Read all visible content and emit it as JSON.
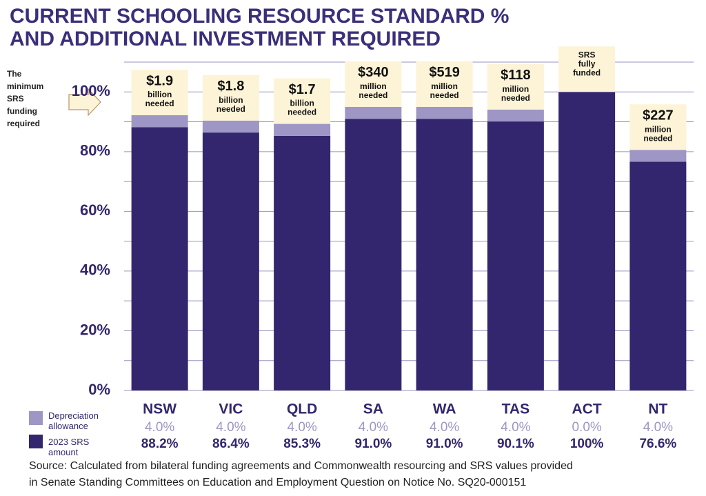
{
  "chart_data": {
    "type": "stacked_bar",
    "title": [
      "CURRENT SCHOOLING RESOURCE STANDARD %",
      "AND ADDITIONAL INVESTMENT REQUIRED"
    ],
    "categories": [
      "NSW",
      "VIC",
      "QLD",
      "SA",
      "WA",
      "TAS",
      "ACT",
      "NT"
    ],
    "series": [
      {
        "name": "2023 SRS amount",
        "color": "#33266e",
        "values": [
          88.2,
          86.4,
          85.3,
          91.0,
          91.0,
          90.1,
          100,
          76.6
        ],
        "value_labels": [
          "88.2%",
          "86.4%",
          "85.3%",
          "91.0%",
          "91.0%",
          "90.1%",
          "100%",
          "76.6%"
        ]
      },
      {
        "name": "Depreciation allowance",
        "color": "#9e96c4",
        "values": [
          4.0,
          4.0,
          4.0,
          4.0,
          4.0,
          4.0,
          0.0,
          4.0
        ],
        "value_labels": [
          "4.0%",
          "4.0%",
          "4.0%",
          "4.0%",
          "4.0%",
          "4.0%",
          "0.0%",
          "4.0%"
        ]
      }
    ],
    "annotations": [
      {
        "amount": "$1.9",
        "lines": [
          "billion",
          "needed"
        ]
      },
      {
        "amount": "$1.8",
        "lines": [
          "billion",
          "needed"
        ]
      },
      {
        "amount": "$1.7",
        "lines": [
          "billion",
          "needed"
        ]
      },
      {
        "amount": "$340",
        "lines": [
          "million",
          "needed"
        ]
      },
      {
        "amount": "$519",
        "lines": [
          "million",
          "needed"
        ]
      },
      {
        "amount": "$118",
        "lines": [
          "million",
          "needed"
        ]
      },
      {
        "lines": [
          "SRS",
          "fully",
          "funded"
        ]
      },
      {
        "amount": "$227",
        "lines": [
          "million",
          "needed"
        ]
      }
    ],
    "side_note": [
      "The",
      "minimum",
      "SRS",
      "funding",
      "required"
    ],
    "ylim": [
      0,
      110
    ],
    "yticks": [
      {
        "value": 0,
        "label": "0%"
      },
      {
        "value": 20,
        "label": "20%"
      },
      {
        "value": 40,
        "label": "40%"
      },
      {
        "value": 60,
        "label": "60%"
      },
      {
        "value": 80,
        "label": "80%"
      },
      {
        "value": 100,
        "label": "100%"
      }
    ],
    "grid_lines": [
      0,
      10,
      20,
      30,
      40,
      50,
      60,
      70,
      80,
      90,
      100,
      110
    ],
    "source": [
      "Source: Calculated from bilateral funding agreements and Commonwealth resourcing and SRS values provided",
      "in Senate Standing Committees on Education and Employment Question on Notice No. SQ20-000151"
    ]
  }
}
